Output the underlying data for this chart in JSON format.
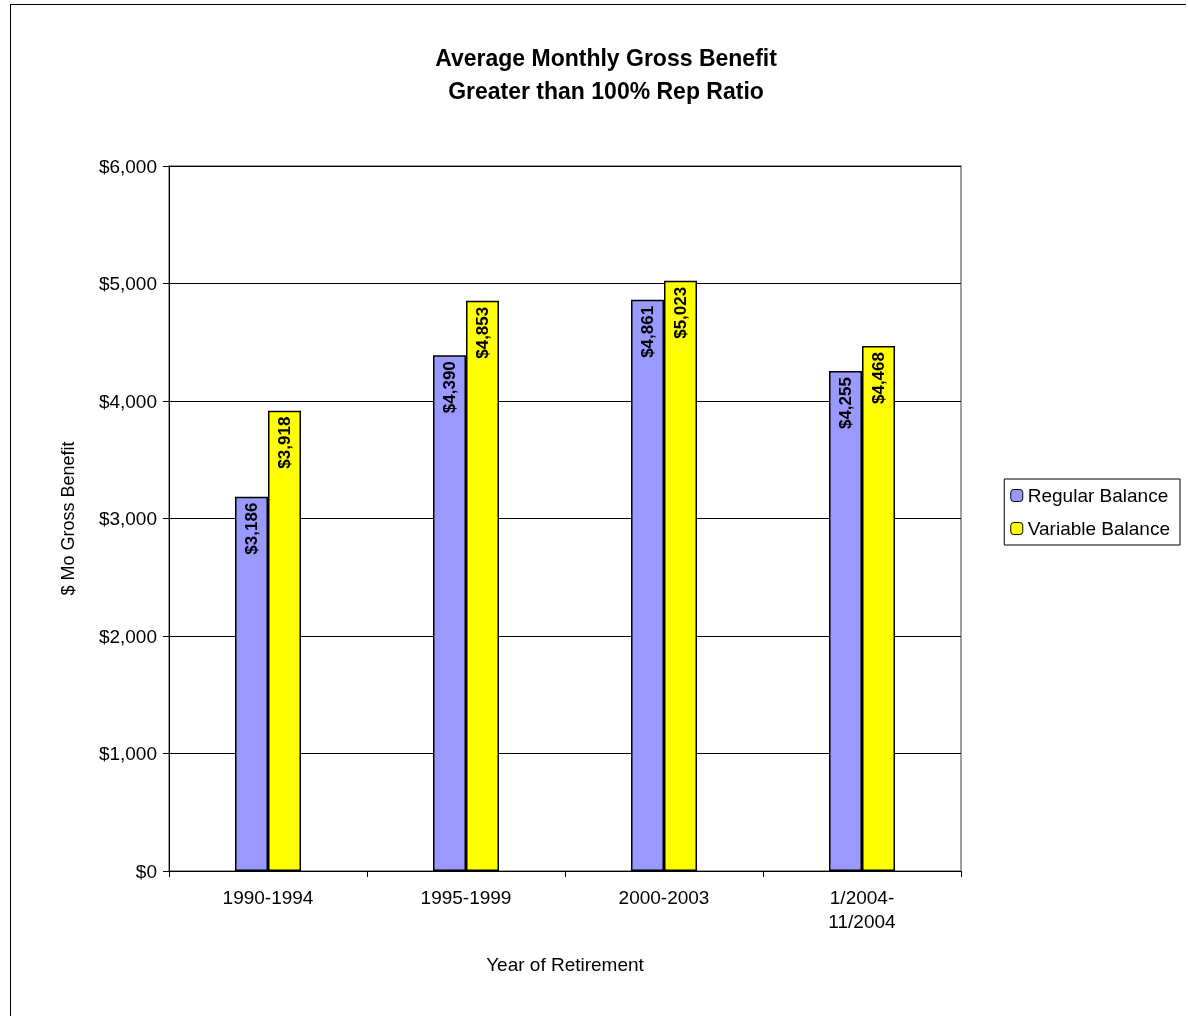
{
  "chart_data": {
    "type": "bar",
    "title": "Average Monthly Gross Benefit",
    "subtitle": "Greater than 100% Rep Ratio",
    "xlabel": "Year of Retirement",
    "ylabel": "$ Mo Gross Benefit",
    "categories": [
      "1990-1994",
      "1995-1999",
      "2000-2003",
      "1/2004-\n11/2004"
    ],
    "series": [
      {
        "name": "Regular Balance",
        "color": "#9999ff",
        "values": [
          3186,
          4390,
          4861,
          4255
        ],
        "value_labels": [
          "$3,186",
          "$4,390",
          "$4,861",
          "$4,255"
        ]
      },
      {
        "name": "Variable Balance",
        "color": "#ffff00",
        "values": [
          3918,
          4853,
          5023,
          4468
        ],
        "value_labels": [
          "$3,918",
          "$4,853",
          "$5,023",
          "$4,468"
        ]
      }
    ],
    "ylim": [
      0,
      6000
    ],
    "yticks": [
      {
        "value": 0,
        "label": "$0"
      },
      {
        "value": 1000,
        "label": "$1,000"
      },
      {
        "value": 2000,
        "label": "$2,000"
      },
      {
        "value": 3000,
        "label": "$3,000"
      },
      {
        "value": 4000,
        "label": "$4,000"
      },
      {
        "value": 5000,
        "label": "$5,000"
      },
      {
        "value": 6000,
        "label": "$6,000"
      }
    ],
    "grid": "y",
    "legend": "right"
  }
}
